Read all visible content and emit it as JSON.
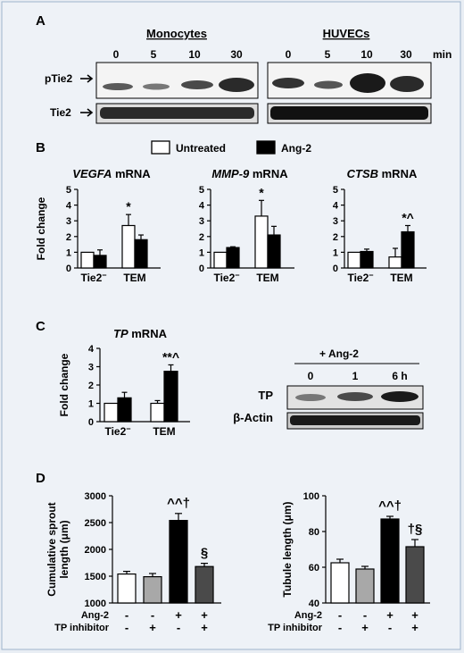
{
  "panel_labels": {
    "a": "A",
    "b": "B",
    "c": "C",
    "d": "D"
  },
  "panel_a": {
    "group1": "Monocytes",
    "group2": "HUVECs",
    "times": [
      "0",
      "5",
      "10",
      "30"
    ],
    "unit": "min",
    "row1_label": "pTie2",
    "row2_label": "Tie2"
  },
  "legend": {
    "untreated": "Untreated",
    "ang2": "Ang-2"
  },
  "colors": {
    "white_bar": "#ffffff",
    "black_bar": "#000000",
    "gray_bar": "#a8a8a8",
    "dark_gray_bar": "#4a4a4a",
    "background": "#eef2f7"
  },
  "chart_data": [
    {
      "type": "bar",
      "id": "vegfa",
      "title_gene": "VEGFA",
      "title_rest": " mRNA",
      "ylabel": "Fold change",
      "ylim": [
        0,
        5
      ],
      "yticks": [
        "0",
        "1",
        "2",
        "3",
        "4",
        "5"
      ],
      "categories": [
        "Tie2⁻",
        "TEM"
      ],
      "series": [
        {
          "name": "Untreated",
          "values": [
            1.0,
            2.7
          ],
          "errors": [
            0,
            0.7
          ]
        },
        {
          "name": "Ang-2",
          "values": [
            0.8,
            1.8
          ],
          "errors": [
            0.35,
            0.3
          ]
        }
      ],
      "annotations": [
        {
          "category": 1,
          "series": 0,
          "text": "*"
        }
      ]
    },
    {
      "type": "bar",
      "id": "mmp9",
      "title_gene": "MMP-9",
      "title_rest": " mRNA",
      "ylabel": "",
      "ylim": [
        0,
        5
      ],
      "yticks": [
        "0",
        "1",
        "2",
        "3",
        "4",
        "5"
      ],
      "categories": [
        "Tie2⁻",
        "TEM"
      ],
      "series": [
        {
          "name": "Untreated",
          "values": [
            1.0,
            3.3
          ],
          "errors": [
            0,
            1.0
          ]
        },
        {
          "name": "Ang-2",
          "values": [
            1.3,
            2.1
          ],
          "errors": [
            0.05,
            0.55
          ]
        }
      ],
      "annotations": [
        {
          "category": 1,
          "series": 0,
          "text": "*"
        }
      ]
    },
    {
      "type": "bar",
      "id": "ctsb",
      "title_gene": "CTSB",
      "title_rest": " mRNA",
      "ylabel": "",
      "ylim": [
        0,
        5
      ],
      "yticks": [
        "0",
        "1",
        "2",
        "3",
        "4",
        "5"
      ],
      "categories": [
        "Tie2⁻",
        "TEM"
      ],
      "series": [
        {
          "name": "Untreated",
          "values": [
            1.0,
            0.7
          ],
          "errors": [
            0,
            0.55
          ]
        },
        {
          "name": "Ang-2",
          "values": [
            1.05,
            2.3
          ],
          "errors": [
            0.15,
            0.4
          ]
        }
      ],
      "annotations": [
        {
          "category": 1,
          "series": 1,
          "text": "*^"
        }
      ]
    },
    {
      "type": "bar",
      "id": "tp",
      "title_gene": "TP",
      "title_rest": " mRNA",
      "ylabel": "Fold change",
      "ylim": [
        0,
        4
      ],
      "yticks": [
        "0",
        "1",
        "2",
        "3",
        "4"
      ],
      "categories": [
        "Tie2⁻",
        "TEM"
      ],
      "series": [
        {
          "name": "Untreated",
          "values": [
            1.0,
            1.0
          ],
          "errors": [
            0,
            0.15
          ]
        },
        {
          "name": "Ang-2",
          "values": [
            1.3,
            2.75
          ],
          "errors": [
            0.3,
            0.35
          ]
        }
      ],
      "annotations": [
        {
          "category": 1,
          "series": 1,
          "text": "**^"
        }
      ]
    },
    {
      "type": "bar",
      "id": "sprout",
      "ylabel": "Cumulative sprout length (μm)",
      "ylim": [
        1000,
        3000
      ],
      "yticks": [
        "1000",
        "1500",
        "2000",
        "2500",
        "3000"
      ],
      "conditions": [
        {
          "ang2": "-",
          "tp": "-"
        },
        {
          "ang2": "-",
          "tp": "+"
        },
        {
          "ang2": "+",
          "tp": "-"
        },
        {
          "ang2": "+",
          "tp": "+"
        }
      ],
      "values": [
        1540,
        1490,
        2540,
        1680
      ],
      "errors": [
        50,
        60,
        130,
        60
      ],
      "bar_colors": [
        "#ffffff",
        "#a8a8a8",
        "#000000",
        "#4a4a4a"
      ],
      "annotations": [
        {
          "index": 2,
          "text": "^^†"
        },
        {
          "index": 3,
          "text": "§"
        }
      ]
    },
    {
      "type": "bar",
      "id": "tubule",
      "ylabel": "Tubule length (μm)",
      "ylim": [
        40,
        100
      ],
      "yticks": [
        "40",
        "60",
        "80",
        "100"
      ],
      "conditions": [
        {
          "ang2": "-",
          "tp": "-"
        },
        {
          "ang2": "-",
          "tp": "+"
        },
        {
          "ang2": "+",
          "tp": "-"
        },
        {
          "ang2": "+",
          "tp": "+"
        }
      ],
      "values": [
        62.5,
        59,
        87,
        71.5
      ],
      "errors": [
        2,
        1.5,
        1.5,
        4
      ],
      "bar_colors": [
        "#ffffff",
        "#a8a8a8",
        "#000000",
        "#4a4a4a"
      ],
      "annotations": [
        {
          "index": 2,
          "text": "^^†"
        },
        {
          "index": 3,
          "text": "†§"
        }
      ]
    }
  ],
  "panel_c_blot": {
    "treatment": "+ Ang-2",
    "times": [
      "0",
      "1",
      "6 h"
    ],
    "row1_label": "TP",
    "row2_label": "β-Actin"
  },
  "panel_d": {
    "row1_label": "Ang-2",
    "row2_label": "TP inhibitor"
  }
}
